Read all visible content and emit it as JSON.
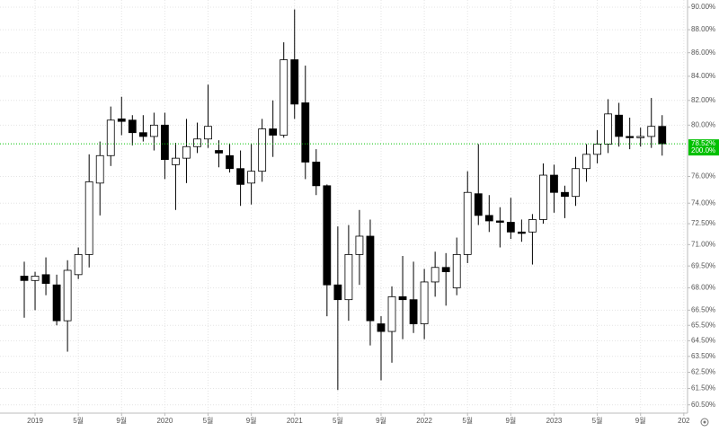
{
  "chart_data": {
    "type": "candlestick",
    "log_scale": true,
    "grid": true,
    "up_color": "#ffffff",
    "down_color": "#000000",
    "wick_color": "#000000",
    "current_color": "#00c000",
    "categories": [
      null,
      "2019",
      null,
      null,
      null,
      "5월",
      null,
      null,
      null,
      "9월",
      null,
      null,
      null,
      "2020",
      null,
      null,
      null,
      "5월",
      null,
      null,
      null,
      "9월",
      null,
      null,
      null,
      "2021",
      null,
      null,
      null,
      "5월",
      null,
      null,
      null,
      "9월",
      null,
      null,
      null,
      "2022",
      null,
      null,
      null,
      "5월",
      null,
      null,
      null,
      "9월",
      null,
      null,
      null,
      "2023",
      null,
      null,
      null,
      "5월",
      null,
      null,
      null,
      "9월",
      null,
      null,
      null,
      "202"
    ],
    "open": [
      68.8,
      68.5,
      68.9,
      68.2,
      65.8,
      68.9,
      70.3,
      75.5,
      77.6,
      80.5,
      80.4,
      79.4,
      79.1,
      80.0,
      76.9,
      77.4,
      78.3,
      78.9,
      78.0,
      77.6,
      76.6,
      75.5,
      76.4,
      79.7,
      79.2,
      85.4,
      81.8,
      77.1,
      75.3,
      68.2,
      67.2,
      70.3,
      71.6,
      65.6,
      65.1,
      67.4,
      67.2,
      65.6,
      68.4,
      69.4,
      68.0,
      70.3,
      74.7,
      73.1,
      72.7,
      72.6,
      71.9,
      71.9,
      72.8,
      76.1,
      74.8,
      74.5,
      76.6,
      77.7,
      78.5,
      80.8,
      79.1,
      79.0,
      79.1,
      79.9,
      null,
      null
    ],
    "high": [
      69.8,
      69.1,
      70.1,
      68.9,
      69.9,
      70.8,
      77.7,
      78.7,
      81.5,
      82.3,
      80.8,
      80.8,
      81.0,
      81.0,
      78.6,
      80.5,
      80.2,
      83.3,
      78.8,
      78.5,
      78.0,
      78.5,
      80.5,
      82.0,
      86.9,
      89.8,
      84.9,
      78.1,
      75.4,
      72.3,
      72.4,
      73.5,
      72.8,
      66.1,
      68.1,
      70.2,
      69.8,
      69.3,
      70.5,
      70.4,
      71.5,
      76.4,
      78.5,
      74.6,
      73.7,
      74.4,
      72.8,
      73.2,
      77.0,
      76.9,
      75.3,
      77.5,
      78.5,
      79.6,
      82.1,
      81.8,
      80.6,
      79.8,
      82.2,
      80.8,
      null,
      null
    ],
    "low": [
      66.0,
      66.5,
      67.5,
      65.5,
      63.8,
      68.6,
      69.4,
      73.1,
      76.8,
      79.2,
      78.4,
      78.7,
      78.0,
      75.8,
      73.5,
      75.5,
      77.8,
      78.2,
      76.7,
      76.3,
      73.8,
      73.9,
      75.6,
      77.5,
      79.0,
      80.5,
      75.8,
      74.6,
      66.1,
      61.4,
      65.8,
      68.2,
      64.2,
      62.0,
      63.1,
      64.6,
      65.0,
      64.6,
      67.4,
      66.8,
      67.5,
      69.7,
      72.4,
      71.9,
      70.8,
      71.4,
      71.2,
      69.6,
      72.5,
      73.3,
      72.9,
      73.8,
      75.6,
      77.0,
      77.8,
      78.3,
      78.1,
      78.3,
      78.2,
      77.6,
      null,
      null
    ],
    "close": [
      68.5,
      68.8,
      68.3,
      65.8,
      69.2,
      70.3,
      75.6,
      77.6,
      80.4,
      80.3,
      79.4,
      79.1,
      80.0,
      77.3,
      77.4,
      78.3,
      78.9,
      79.9,
      77.8,
      76.6,
      75.4,
      76.4,
      79.7,
      79.2,
      85.4,
      81.7,
      77.1,
      75.3,
      68.2,
      67.2,
      70.3,
      71.6,
      65.8,
      65.1,
      67.4,
      67.2,
      65.6,
      68.4,
      69.4,
      69.1,
      70.3,
      74.8,
      73.1,
      72.7,
      72.6,
      71.9,
      71.8,
      72.8,
      76.1,
      74.8,
      74.5,
      76.6,
      77.7,
      78.5,
      80.9,
      79.1,
      79.0,
      79.1,
      79.9,
      78.52,
      null,
      null
    ],
    "current": {
      "value": 78.52,
      "label": "78.52%"
    },
    "current_sub": "200.0%",
    "ylim": [
      60.0,
      90.65
    ],
    "yticks": [
      {
        "value": 90,
        "label": "90.00%"
      },
      {
        "value": 88,
        "label": "88.00%"
      },
      {
        "value": 86,
        "label": "86.00%"
      },
      {
        "value": 84,
        "label": "84.00%"
      },
      {
        "value": 82,
        "label": "82.00%"
      },
      {
        "value": 80,
        "label": "80.00%"
      },
      {
        "value": 76,
        "label": "76.00%"
      },
      {
        "value": 74,
        "label": "74.00%"
      },
      {
        "value": 72.5,
        "label": "72.50%"
      },
      {
        "value": 71,
        "label": "71.00%"
      },
      {
        "value": 69.5,
        "label": "69.50%"
      },
      {
        "value": 68,
        "label": "68.00%"
      },
      {
        "value": 66.5,
        "label": "66.50%"
      },
      {
        "value": 65.5,
        "label": "65.50%"
      },
      {
        "value": 64.5,
        "label": "64.50%"
      },
      {
        "value": 63.5,
        "label": "63.50%"
      },
      {
        "value": 62.5,
        "label": "62.50%"
      },
      {
        "value": 61.5,
        "label": "61.50%"
      },
      {
        "value": 60.5,
        "label": "60.50%"
      }
    ]
  }
}
